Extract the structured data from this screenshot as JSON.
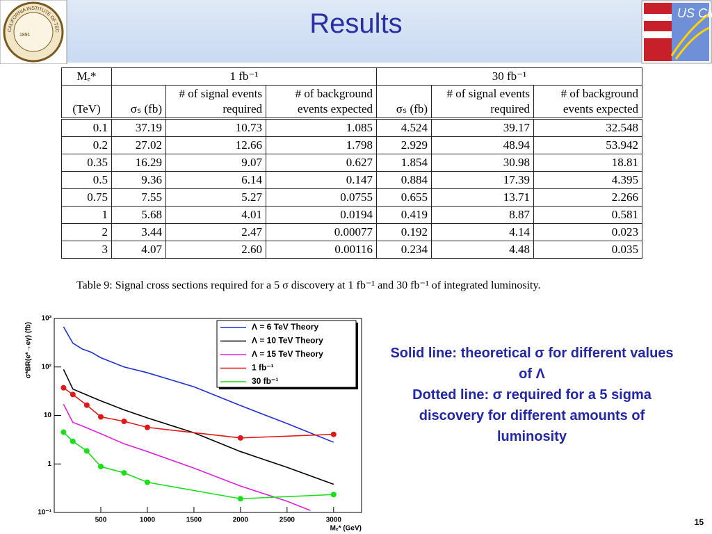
{
  "header": {
    "title": "Results",
    "logo_left_text": "CALIFORNIA INSTITUTE OF TECHNOLOGY",
    "logo_left_year": "1891",
    "logo_right_text": "US CMS"
  },
  "table": {
    "group_headers": [
      "Mₑ*",
      "1 fb⁻¹",
      "30 fb⁻¹"
    ],
    "column_headers": [
      "(TeV)",
      "σₛ (fb)",
      "# of signal events required",
      "# of background events expected",
      "σₛ (fb)",
      "# of signal events required",
      "# of background events expected"
    ],
    "rows": [
      [
        "0.1",
        "37.19",
        "10.73",
        "1.085",
        "4.524",
        "39.17",
        "32.548"
      ],
      [
        "0.2",
        "27.02",
        "12.66",
        "1.798",
        "2.929",
        "48.94",
        "53.942"
      ],
      [
        "0.35",
        "16.29",
        "9.07",
        "0.627",
        "1.854",
        "30.98",
        "18.81"
      ],
      [
        "0.5",
        "9.36",
        "6.14",
        "0.147",
        "0.884",
        "17.39",
        "4.395"
      ],
      [
        "0.75",
        "7.55",
        "5.27",
        "0.0755",
        "0.655",
        "13.71",
        "2.266"
      ],
      [
        "1",
        "5.68",
        "4.01",
        "0.0194",
        "0.419",
        "8.87",
        "0.581"
      ],
      [
        "2",
        "3.44",
        "2.47",
        "0.00077",
        "0.192",
        "4.14",
        "0.023"
      ],
      [
        "3",
        "4.07",
        "2.60",
        "0.00116",
        "0.234",
        "4.48",
        "0.035"
      ]
    ],
    "caption": "Table 9: Signal cross sections required for a 5 σ discovery at 1 fb⁻¹ and 30 fb⁻¹ of integrated luminosity."
  },
  "chart_data": {
    "type": "line",
    "x_label": "Mₑ* (GeV)",
    "y_label": "σ*BR(e*→eγ) (fb)",
    "xlim": [
      0,
      3300
    ],
    "xticks": [
      500,
      1000,
      1500,
      2000,
      2500,
      3000
    ],
    "ylim": [
      0.1,
      1000
    ],
    "yscale": "log",
    "yticks": [
      {
        "value": 0.1,
        "label": "10⁻¹"
      },
      1,
      10,
      {
        "value": 100,
        "label": "10²"
      },
      {
        "value": 1000,
        "label": "10³"
      }
    ],
    "legend": "top-right",
    "series": [
      {
        "name": "Λ = 6 TeV Theory",
        "color": "#1f2fd8",
        "x": [
          100,
          200,
          300,
          400,
          500,
          750,
          1000,
          1500,
          2000,
          2500,
          3000
        ],
        "values": [
          670,
          310,
          235,
          200,
          155,
          100,
          76,
          39,
          16,
          6.8,
          2.8
        ]
      },
      {
        "name": "Λ = 10 TeV Theory",
        "color": "#000000",
        "x": [
          100,
          200,
          300,
          500,
          750,
          1000,
          1500,
          2000,
          2500,
          3000
        ],
        "values": [
          89,
          35,
          29,
          20,
          13,
          8.9,
          4.4,
          1.8,
          0.85,
          0.38
        ]
      },
      {
        "name": "Λ = 15 TeV Theory",
        "color": "#e020e0",
        "x": [
          100,
          200,
          300,
          500,
          750,
          1000,
          1500,
          2000,
          2500,
          2750
        ],
        "values": [
          17,
          7.2,
          6.1,
          4.2,
          2.6,
          1.8,
          0.82,
          0.35,
          0.17,
          0.11
        ]
      },
      {
        "name": "1 fb⁻¹",
        "color": "#e01818",
        "marker": "circle",
        "x": [
          100,
          200,
          350,
          500,
          750,
          1000,
          2000,
          3000
        ],
        "values": [
          37.19,
          27.02,
          16.29,
          9.36,
          7.55,
          5.68,
          3.44,
          4.07
        ]
      },
      {
        "name": "30 fb⁻¹",
        "color": "#18e018",
        "marker": "circle",
        "x": [
          100,
          200,
          350,
          500,
          750,
          1000,
          2000,
          3000
        ],
        "values": [
          4.524,
          2.929,
          1.854,
          0.884,
          0.655,
          0.419,
          0.192,
          0.234
        ]
      }
    ]
  },
  "notes": [
    "Solid line: theoretical σ for different values of Λ",
    "Dotted line: σ required for a 5 sigma discovery for different amounts of luminosity"
  ],
  "page_number": "15"
}
